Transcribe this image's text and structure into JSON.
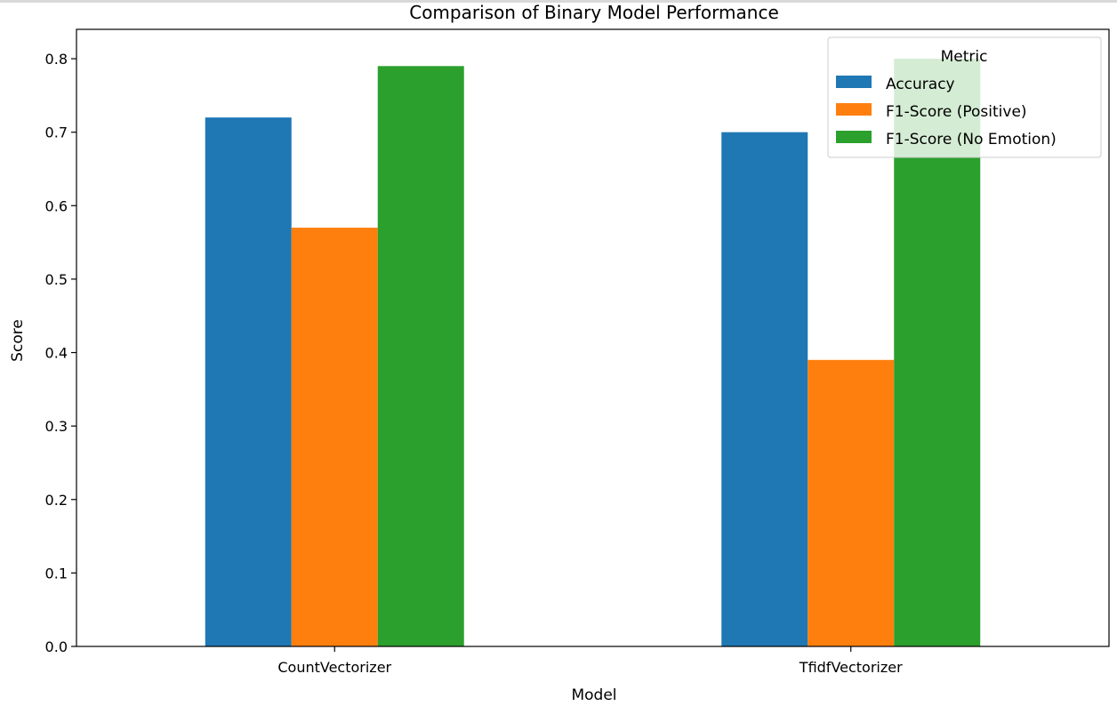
{
  "chart_data": {
    "type": "bar",
    "title": "Comparison of Binary Model Performance",
    "xlabel": "Model",
    "ylabel": "Score",
    "categories": [
      "CountVectorizer",
      "TfidfVectorizer"
    ],
    "ylim": [
      0,
      0.84
    ],
    "yticks": [
      "0.0",
      "0.1",
      "0.2",
      "0.3",
      "0.4",
      "0.5",
      "0.6",
      "0.7",
      "0.8"
    ],
    "grid": false,
    "legend": {
      "title": "Metric",
      "placement": "top-right"
    },
    "series": [
      {
        "name": "Accuracy",
        "color": "#1f77b4",
        "values": [
          0.72,
          0.7
        ]
      },
      {
        "name": "F1-Score (Positive)",
        "color": "#ff7f0e",
        "values": [
          0.57,
          0.39
        ]
      },
      {
        "name": "F1-Score (No Emotion)",
        "color": "#2ca02c",
        "values": [
          0.79,
          0.8
        ]
      }
    ]
  }
}
